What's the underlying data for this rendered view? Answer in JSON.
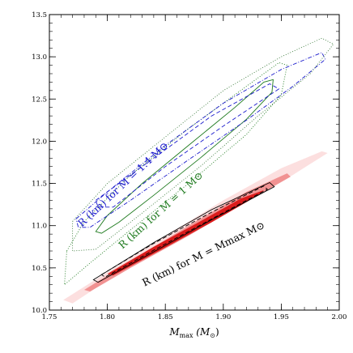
{
  "chart_data": {
    "type": "scatter",
    "title": "",
    "xlabel": "M",
    "xlabel_sub": "max",
    "xlabel_unit_open": " (M",
    "xlabel_unit_sub": "⊙",
    "xlabel_unit_close": ")",
    "ylabel": "",
    "xlim": [
      1.75,
      2.0
    ],
    "ylim": [
      10.0,
      13.5
    ],
    "xticks": [
      {
        "value": 1.75,
        "label": "1.75"
      },
      {
        "value": 1.8,
        "label": "1.80"
      },
      {
        "value": 1.85,
        "label": "1.85"
      },
      {
        "value": 1.9,
        "label": "1.90"
      },
      {
        "value": 1.95,
        "label": "1.95"
      },
      {
        "value": 2.0,
        "label": "2.00"
      }
    ],
    "yticks": [
      {
        "value": 10.0,
        "label": "10.0"
      },
      {
        "value": 10.5,
        "label": "10.5"
      },
      {
        "value": 11.0,
        "label": "11.0"
      },
      {
        "value": 11.5,
        "label": "11.5"
      },
      {
        "value": 12.0,
        "label": "12.0"
      },
      {
        "value": 12.5,
        "label": "12.5"
      },
      {
        "value": 13.0,
        "label": "13.0"
      },
      {
        "value": 13.5,
        "label": "13.5"
      }
    ],
    "grid": false,
    "annotations": [
      {
        "text": "R (km) for M = 1.4 M⊙",
        "color": "#1a1acc",
        "x": 1.778,
        "y": 10.98,
        "rotation_deg": -43
      },
      {
        "text": "R (km) for M = 1 M⊙",
        "color": "#1e7a1e",
        "x": 1.813,
        "y": 10.72,
        "rotation_deg": -42
      },
      {
        "text": "R (km) for M = Mmax M⊙",
        "color": "#000000",
        "x": 1.832,
        "y": 10.28,
        "rotation_deg": -26
      }
    ],
    "series": [
      {
        "name": "R (km) for M = Mmax M⊙",
        "color": "#e00000",
        "contours": [
          {
            "level": "outer-filled",
            "color": "#fbd4d4",
            "points": [
              [
                1.762,
                10.12
              ],
              [
                1.8,
                10.45
              ],
              [
                1.85,
                10.88
              ],
              [
                1.9,
                11.3
              ],
              [
                1.95,
                11.68
              ],
              [
                1.985,
                11.88
              ],
              [
                1.99,
                11.86
              ],
              [
                1.96,
                11.6
              ],
              [
                1.9,
                11.12
              ],
              [
                1.85,
                10.74
              ],
              [
                1.8,
                10.35
              ],
              [
                1.77,
                10.08
              ]
            ]
          },
          {
            "level": "mid-filled",
            "color": "#f08a8a",
            "points": [
              [
                1.78,
                10.24
              ],
              [
                1.82,
                10.58
              ],
              [
                1.87,
                11.0
              ],
              [
                1.92,
                11.4
              ],
              [
                1.955,
                11.62
              ],
              [
                1.958,
                11.58
              ],
              [
                1.92,
                11.28
              ],
              [
                1.87,
                10.88
              ],
              [
                1.82,
                10.5
              ],
              [
                1.785,
                10.22
              ]
            ]
          },
          {
            "level": "inner-filled",
            "color": "#d81010",
            "points": [
              [
                1.8,
                10.43
              ],
              [
                1.84,
                10.75
              ],
              [
                1.88,
                11.05
              ],
              [
                1.915,
                11.32
              ],
              [
                1.935,
                11.42
              ],
              [
                1.93,
                11.36
              ],
              [
                1.89,
                11.04
              ],
              [
                1.85,
                10.74
              ],
              [
                1.805,
                10.41
              ]
            ]
          },
          {
            "level": "dashed",
            "color": "#000000",
            "points": [
              [
                1.795,
                10.42
              ],
              [
                1.84,
                10.79
              ],
              [
                1.89,
                11.16
              ],
              [
                1.935,
                11.47
              ],
              [
                1.938,
                11.43
              ],
              [
                1.89,
                11.08
              ],
              [
                1.84,
                10.71
              ],
              [
                1.798,
                10.39
              ]
            ]
          },
          {
            "level": "solid",
            "color": "#000000",
            "points": [
              [
                1.788,
                10.36
              ],
              [
                1.84,
                10.8
              ],
              [
                1.89,
                11.19
              ],
              [
                1.94,
                11.51
              ],
              [
                1.944,
                11.46
              ],
              [
                1.89,
                11.07
              ],
              [
                1.84,
                10.69
              ],
              [
                1.792,
                10.33
              ]
            ]
          }
        ]
      },
      {
        "name": "R (km) for M = 1 M⊙",
        "color": "#1e7a1e",
        "contours": [
          {
            "level": "solid",
            "points": [
              [
                1.79,
                10.93
              ],
              [
                1.8,
                11.12
              ],
              [
                1.83,
                11.5
              ],
              [
                1.87,
                11.95
              ],
              [
                1.91,
                12.4
              ],
              [
                1.935,
                12.7
              ],
              [
                1.943,
                12.73
              ],
              [
                1.942,
                12.58
              ],
              [
                1.92,
                12.26
              ],
              [
                1.88,
                11.8
              ],
              [
                1.84,
                11.36
              ],
              [
                1.81,
                11.04
              ],
              [
                1.795,
                10.91
              ]
            ]
          },
          {
            "level": "dotted",
            "points": [
              [
                1.765,
                10.7
              ],
              [
                1.78,
                11.05
              ],
              [
                1.82,
                11.6
              ],
              [
                1.87,
                12.15
              ],
              [
                1.92,
                12.65
              ],
              [
                1.948,
                12.93
              ],
              [
                1.955,
                12.9
              ],
              [
                1.95,
                12.55
              ],
              [
                1.92,
                12.08
              ],
              [
                1.87,
                11.5
              ],
              [
                1.82,
                10.95
              ],
              [
                1.78,
                10.5
              ],
              [
                1.763,
                10.3
              ]
            ]
          }
        ]
      },
      {
        "name": "R (km) for M = 1.4 M⊙",
        "color": "#1a1acc",
        "contours": [
          {
            "level": "dashdot",
            "points": [
              [
                1.773,
                11.08
              ],
              [
                1.8,
                11.4
              ],
              [
                1.85,
                11.95
              ],
              [
                1.9,
                12.45
              ],
              [
                1.95,
                12.85
              ],
              [
                1.985,
                13.05
              ],
              [
                1.988,
                12.97
              ],
              [
                1.96,
                12.65
              ],
              [
                1.92,
                12.25
              ],
              [
                1.87,
                11.78
              ],
              [
                1.82,
                11.3
              ],
              [
                1.785,
                10.98
              ],
              [
                1.775,
                10.98
              ]
            ]
          },
          {
            "level": "dashed",
            "points": [
              [
                1.79,
                11.3
              ],
              [
                1.84,
                11.8
              ],
              [
                1.89,
                12.3
              ],
              [
                1.94,
                12.68
              ],
              [
                1.948,
                12.62
              ],
              [
                1.9,
                12.18
              ],
              [
                1.85,
                11.7
              ],
              [
                1.805,
                11.22
              ],
              [
                1.792,
                11.22
              ]
            ]
          },
          {
            "level": "dotted-outer",
            "color": "#3a7a3a",
            "points": [
              [
                1.77,
                11.05
              ],
              [
                1.8,
                11.5
              ],
              [
                1.85,
                12.05
              ],
              [
                1.9,
                12.6
              ],
              [
                1.95,
                13.0
              ],
              [
                1.985,
                13.22
              ],
              [
                1.995,
                13.15
              ],
              [
                1.975,
                12.8
              ],
              [
                1.93,
                12.3
              ],
              [
                1.88,
                11.7
              ],
              [
                1.83,
                11.15
              ],
              [
                1.79,
                10.72
              ],
              [
                1.77,
                10.7
              ]
            ]
          }
        ]
      }
    ]
  }
}
